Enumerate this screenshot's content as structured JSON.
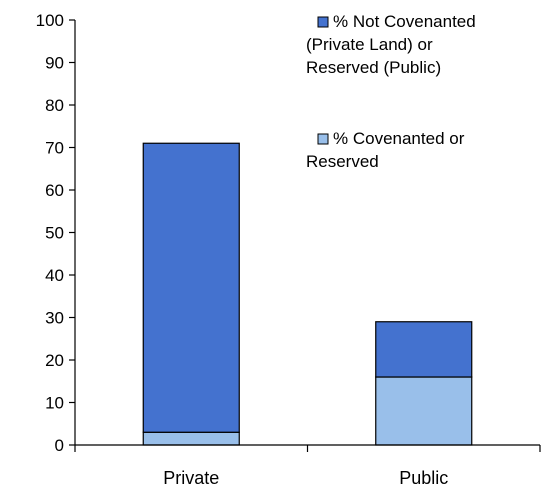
{
  "chart_data": {
    "type": "bar",
    "stacked": true,
    "categories": [
      "Private",
      "Public"
    ],
    "series": [
      {
        "name": "% Covenanted or Reserved",
        "legend_lines": [
          "% Covenanted or",
          "Reserved"
        ],
        "color": "#99BFEA",
        "values": [
          3,
          16
        ]
      },
      {
        "name": "% Not Covenanted (Private Land) or Reserved (Public)",
        "legend_lines": [
          "% Not Covenanted",
          "(Private Land) or",
          "Reserved (Public)"
        ],
        "color": "#4472CF",
        "values": [
          68,
          13
        ]
      }
    ],
    "yticks": [
      "0",
      "10",
      "20",
      "30",
      "40",
      "50",
      "60",
      "70",
      "80",
      "90",
      "100"
    ],
    "ylim": [
      0,
      100
    ],
    "title": "",
    "xlabel": "",
    "ylabel": "",
    "legend_position": "top-right",
    "grid": false
  }
}
